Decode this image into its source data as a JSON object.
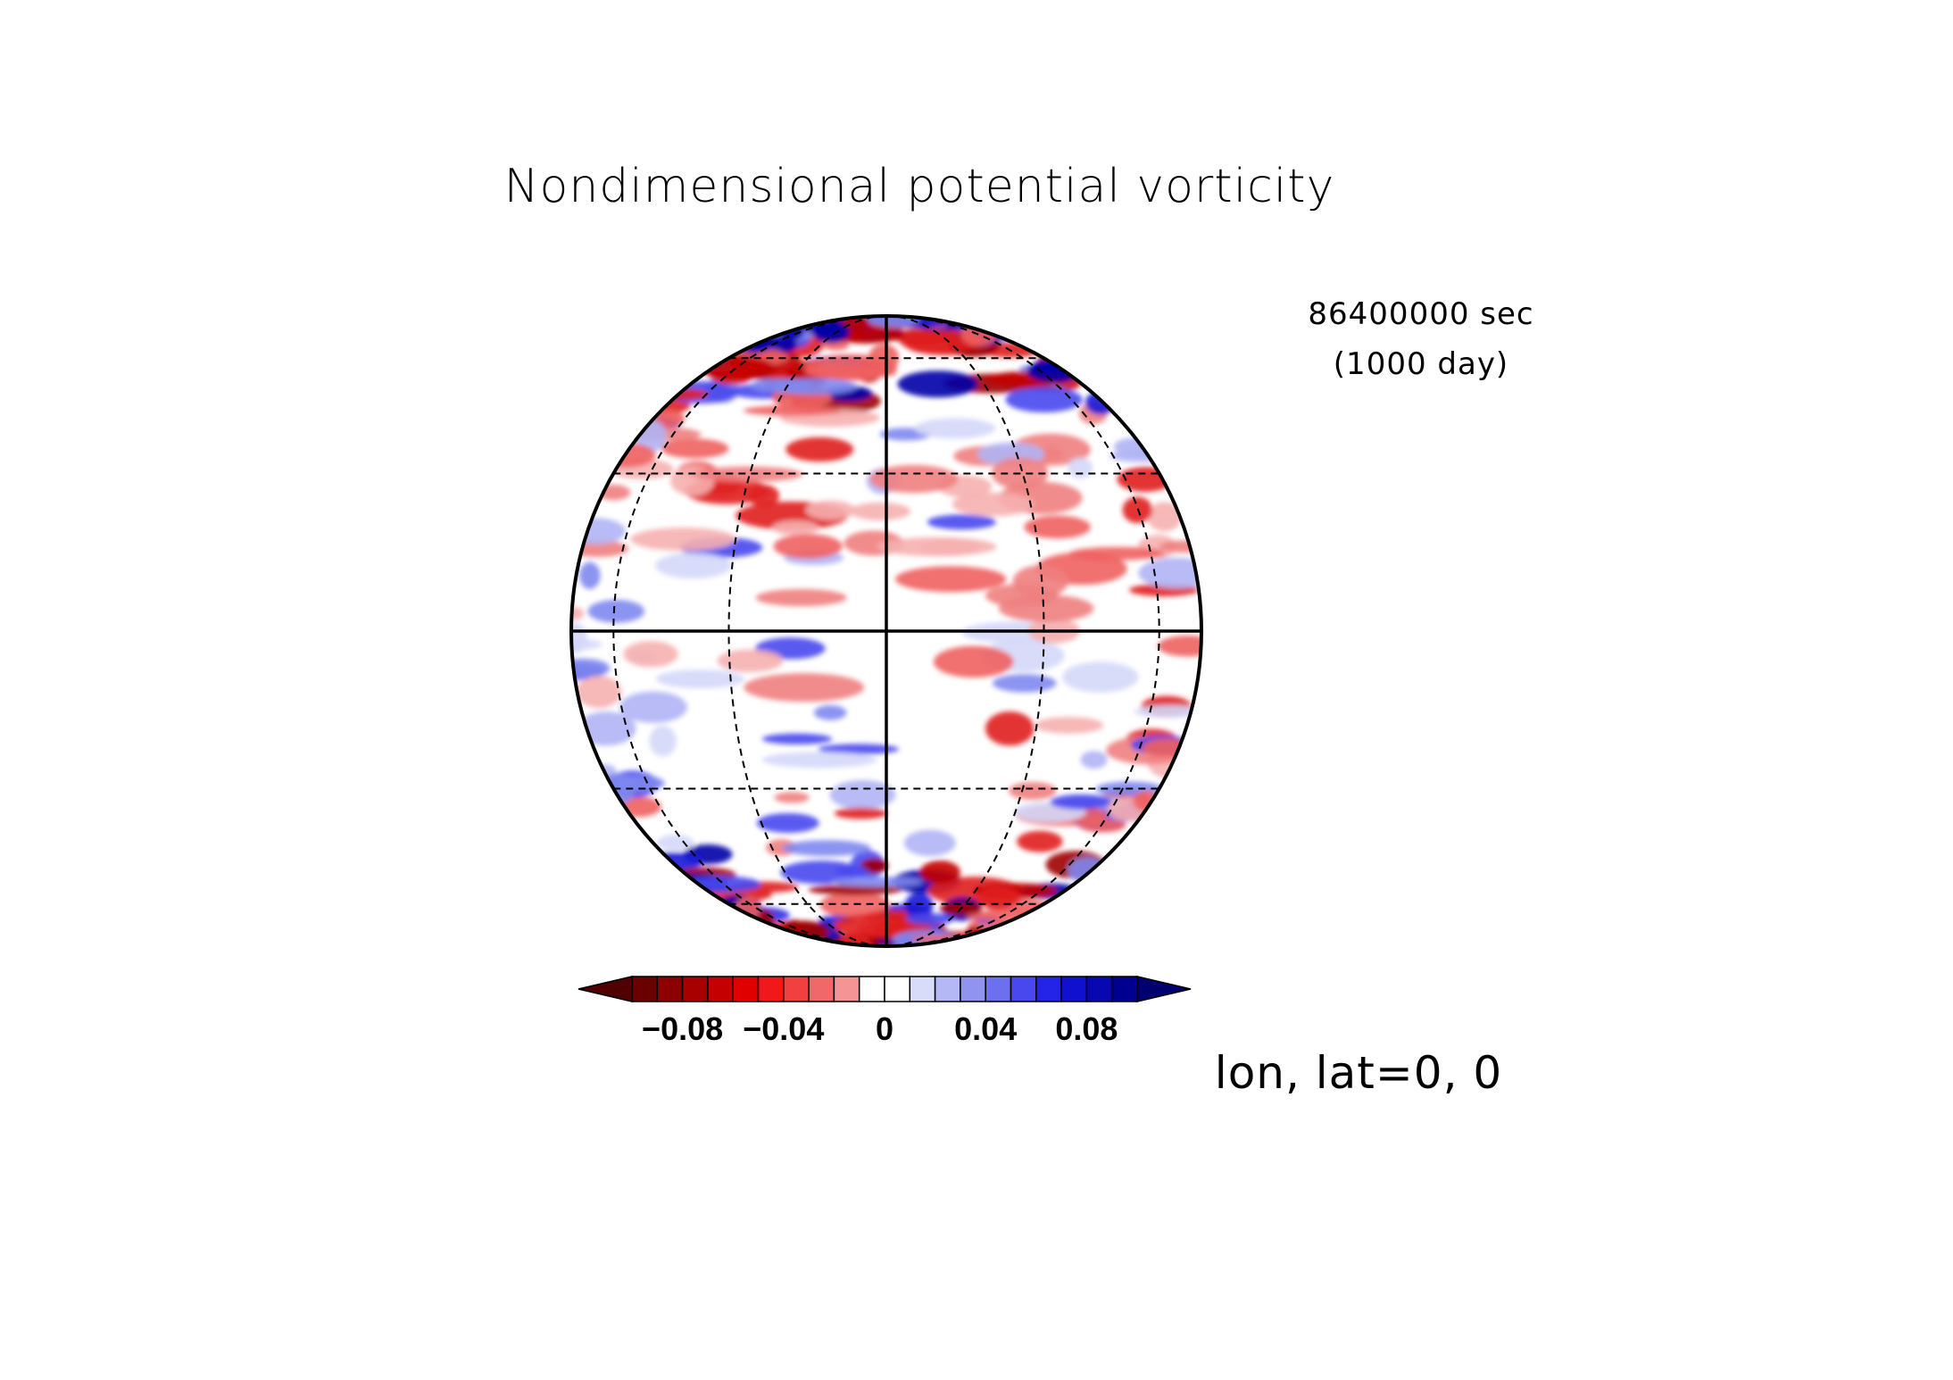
{
  "title": "Nondimensional potential vorticity",
  "time": {
    "seconds_label": "86400000 sec",
    "days_label": "(1000 day)"
  },
  "view_center": "lon, lat=0, 0",
  "colorbar": {
    "colors": [
      "#6b0000",
      "#8c0000",
      "#a80000",
      "#c40000",
      "#e00000",
      "#f01818",
      "#f04040",
      "#f06868",
      "#f49494",
      "#ffffff",
      "#ffffff",
      "#d8dcf8",
      "#b4b8f4",
      "#9094f0",
      "#6c70ee",
      "#4848ee",
      "#2424e8",
      "#1010d0",
      "#0808b0",
      "#000090"
    ],
    "ticks": [
      {
        "label": "−0.08",
        "value": -0.08
      },
      {
        "label": "−0.04",
        "value": -0.04
      },
      {
        "label": "0",
        "value": 0
      },
      {
        "label": "0.04",
        "value": 0.04
      },
      {
        "label": "0.08",
        "value": 0.08
      }
    ],
    "range": [
      -0.1,
      0.1
    ],
    "extend": "both"
  },
  "map": {
    "projection": "orthographic",
    "graticule_lon_step_deg": 30,
    "graticule_lat_step_deg": 30
  }
}
